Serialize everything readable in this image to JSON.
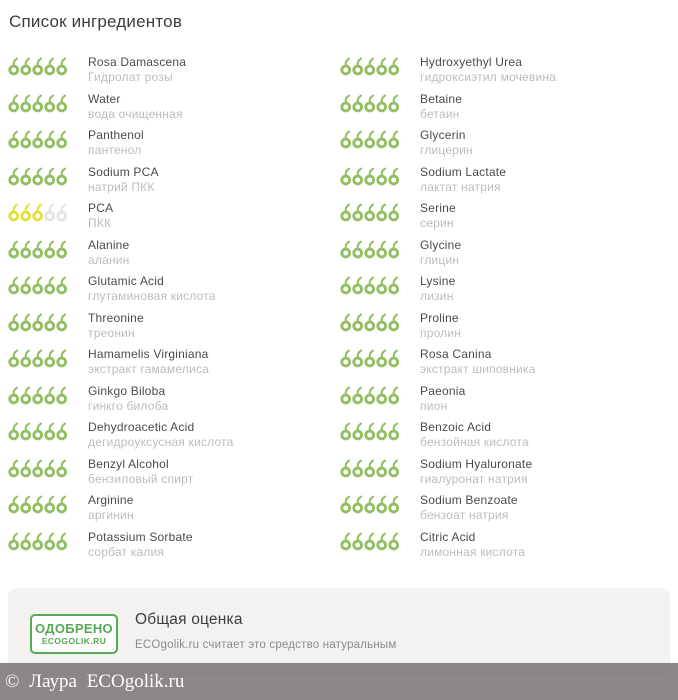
{
  "page_title": "Список ингредиентов",
  "rating": {
    "max": 5
  },
  "colors": {
    "green": "#93bf63",
    "yellow": "#e3df3a",
    "empty": "#e3e3e3",
    "badge_green": "#55a955"
  },
  "columns": [
    [
      {
        "name": "Rosa Damascena",
        "subtitle": "Гидролат розы",
        "score": 5,
        "tone": "green"
      },
      {
        "name": "Water",
        "subtitle": "вода очищенная",
        "score": 5,
        "tone": "green"
      },
      {
        "name": "Panthenol",
        "subtitle": "пантенол",
        "score": 5,
        "tone": "green"
      },
      {
        "name": "Sodium PCA",
        "subtitle": "натрий ПКК",
        "score": 5,
        "tone": "green"
      },
      {
        "name": "PCA",
        "subtitle": "ПКК",
        "score": 3,
        "tone": "yellow"
      },
      {
        "name": "Alanine",
        "subtitle": "аланин",
        "score": 5,
        "tone": "green"
      },
      {
        "name": "Glutamic Acid",
        "subtitle": "глутаминовая кислота",
        "score": 5,
        "tone": "green"
      },
      {
        "name": "Threonine",
        "subtitle": "треонин",
        "score": 5,
        "tone": "green"
      },
      {
        "name": "Hamamelis Virginiana",
        "subtitle": "экстракт гамамелиса",
        "score": 5,
        "tone": "green"
      },
      {
        "name": "Ginkgo Biloba",
        "subtitle": "гинкго билоба",
        "score": 5,
        "tone": "green"
      },
      {
        "name": "Dehydroacetic Acid",
        "subtitle": "дегидроуксусная кислота",
        "score": 5,
        "tone": "green"
      },
      {
        "name": "Benzyl Alcohol",
        "subtitle": "бензиловый спирт",
        "score": 5,
        "tone": "green"
      },
      {
        "name": "Arginine",
        "subtitle": "аргинин",
        "score": 5,
        "tone": "green"
      },
      {
        "name": "Potassium Sorbate",
        "subtitle": "сорбат калия",
        "score": 5,
        "tone": "green"
      }
    ],
    [
      {
        "name": "Hydroxyethyl Urea",
        "subtitle": "гидроксиэтил мочевина",
        "score": 5,
        "tone": "green"
      },
      {
        "name": "Betaine",
        "subtitle": "бетаин",
        "score": 5,
        "tone": "green"
      },
      {
        "name": "Glycerin",
        "subtitle": "глицерин",
        "score": 5,
        "tone": "green"
      },
      {
        "name": "Sodium Lactate",
        "subtitle": "лактат натрия",
        "score": 5,
        "tone": "green"
      },
      {
        "name": "Serine",
        "subtitle": "серин",
        "score": 5,
        "tone": "green"
      },
      {
        "name": "Glycine",
        "subtitle": "глицин",
        "score": 5,
        "tone": "green"
      },
      {
        "name": "Lysine",
        "subtitle": "лизин",
        "score": 5,
        "tone": "green"
      },
      {
        "name": "Proline",
        "subtitle": "пролин",
        "score": 5,
        "tone": "green"
      },
      {
        "name": "Rosa Canina",
        "subtitle": "экстракт шиповника",
        "score": 5,
        "tone": "green"
      },
      {
        "name": "Paeonia",
        "subtitle": "пион",
        "score": 5,
        "tone": "green"
      },
      {
        "name": "Benzoic Acid",
        "subtitle": "бензойная кислота",
        "score": 5,
        "tone": "green"
      },
      {
        "name": "Sodium Hyaluronate",
        "subtitle": "гиалуронат натрия",
        "score": 5,
        "tone": "green"
      },
      {
        "name": "Sodium Benzoate",
        "subtitle": "бензоат натрия",
        "score": 5,
        "tone": "green"
      },
      {
        "name": "Citric Acid",
        "subtitle": "лимонная кислота",
        "score": 5,
        "tone": "green"
      }
    ]
  ],
  "summary": {
    "badge_line1": "ОДОБРЕНО",
    "badge_line2": "ECOGOLIK.RU",
    "title": "Общая оценка",
    "text": "ECOgolik.ru считает это средство натуральным"
  },
  "footer": {
    "copyright": "© Лаура ECOgolik.ru"
  }
}
